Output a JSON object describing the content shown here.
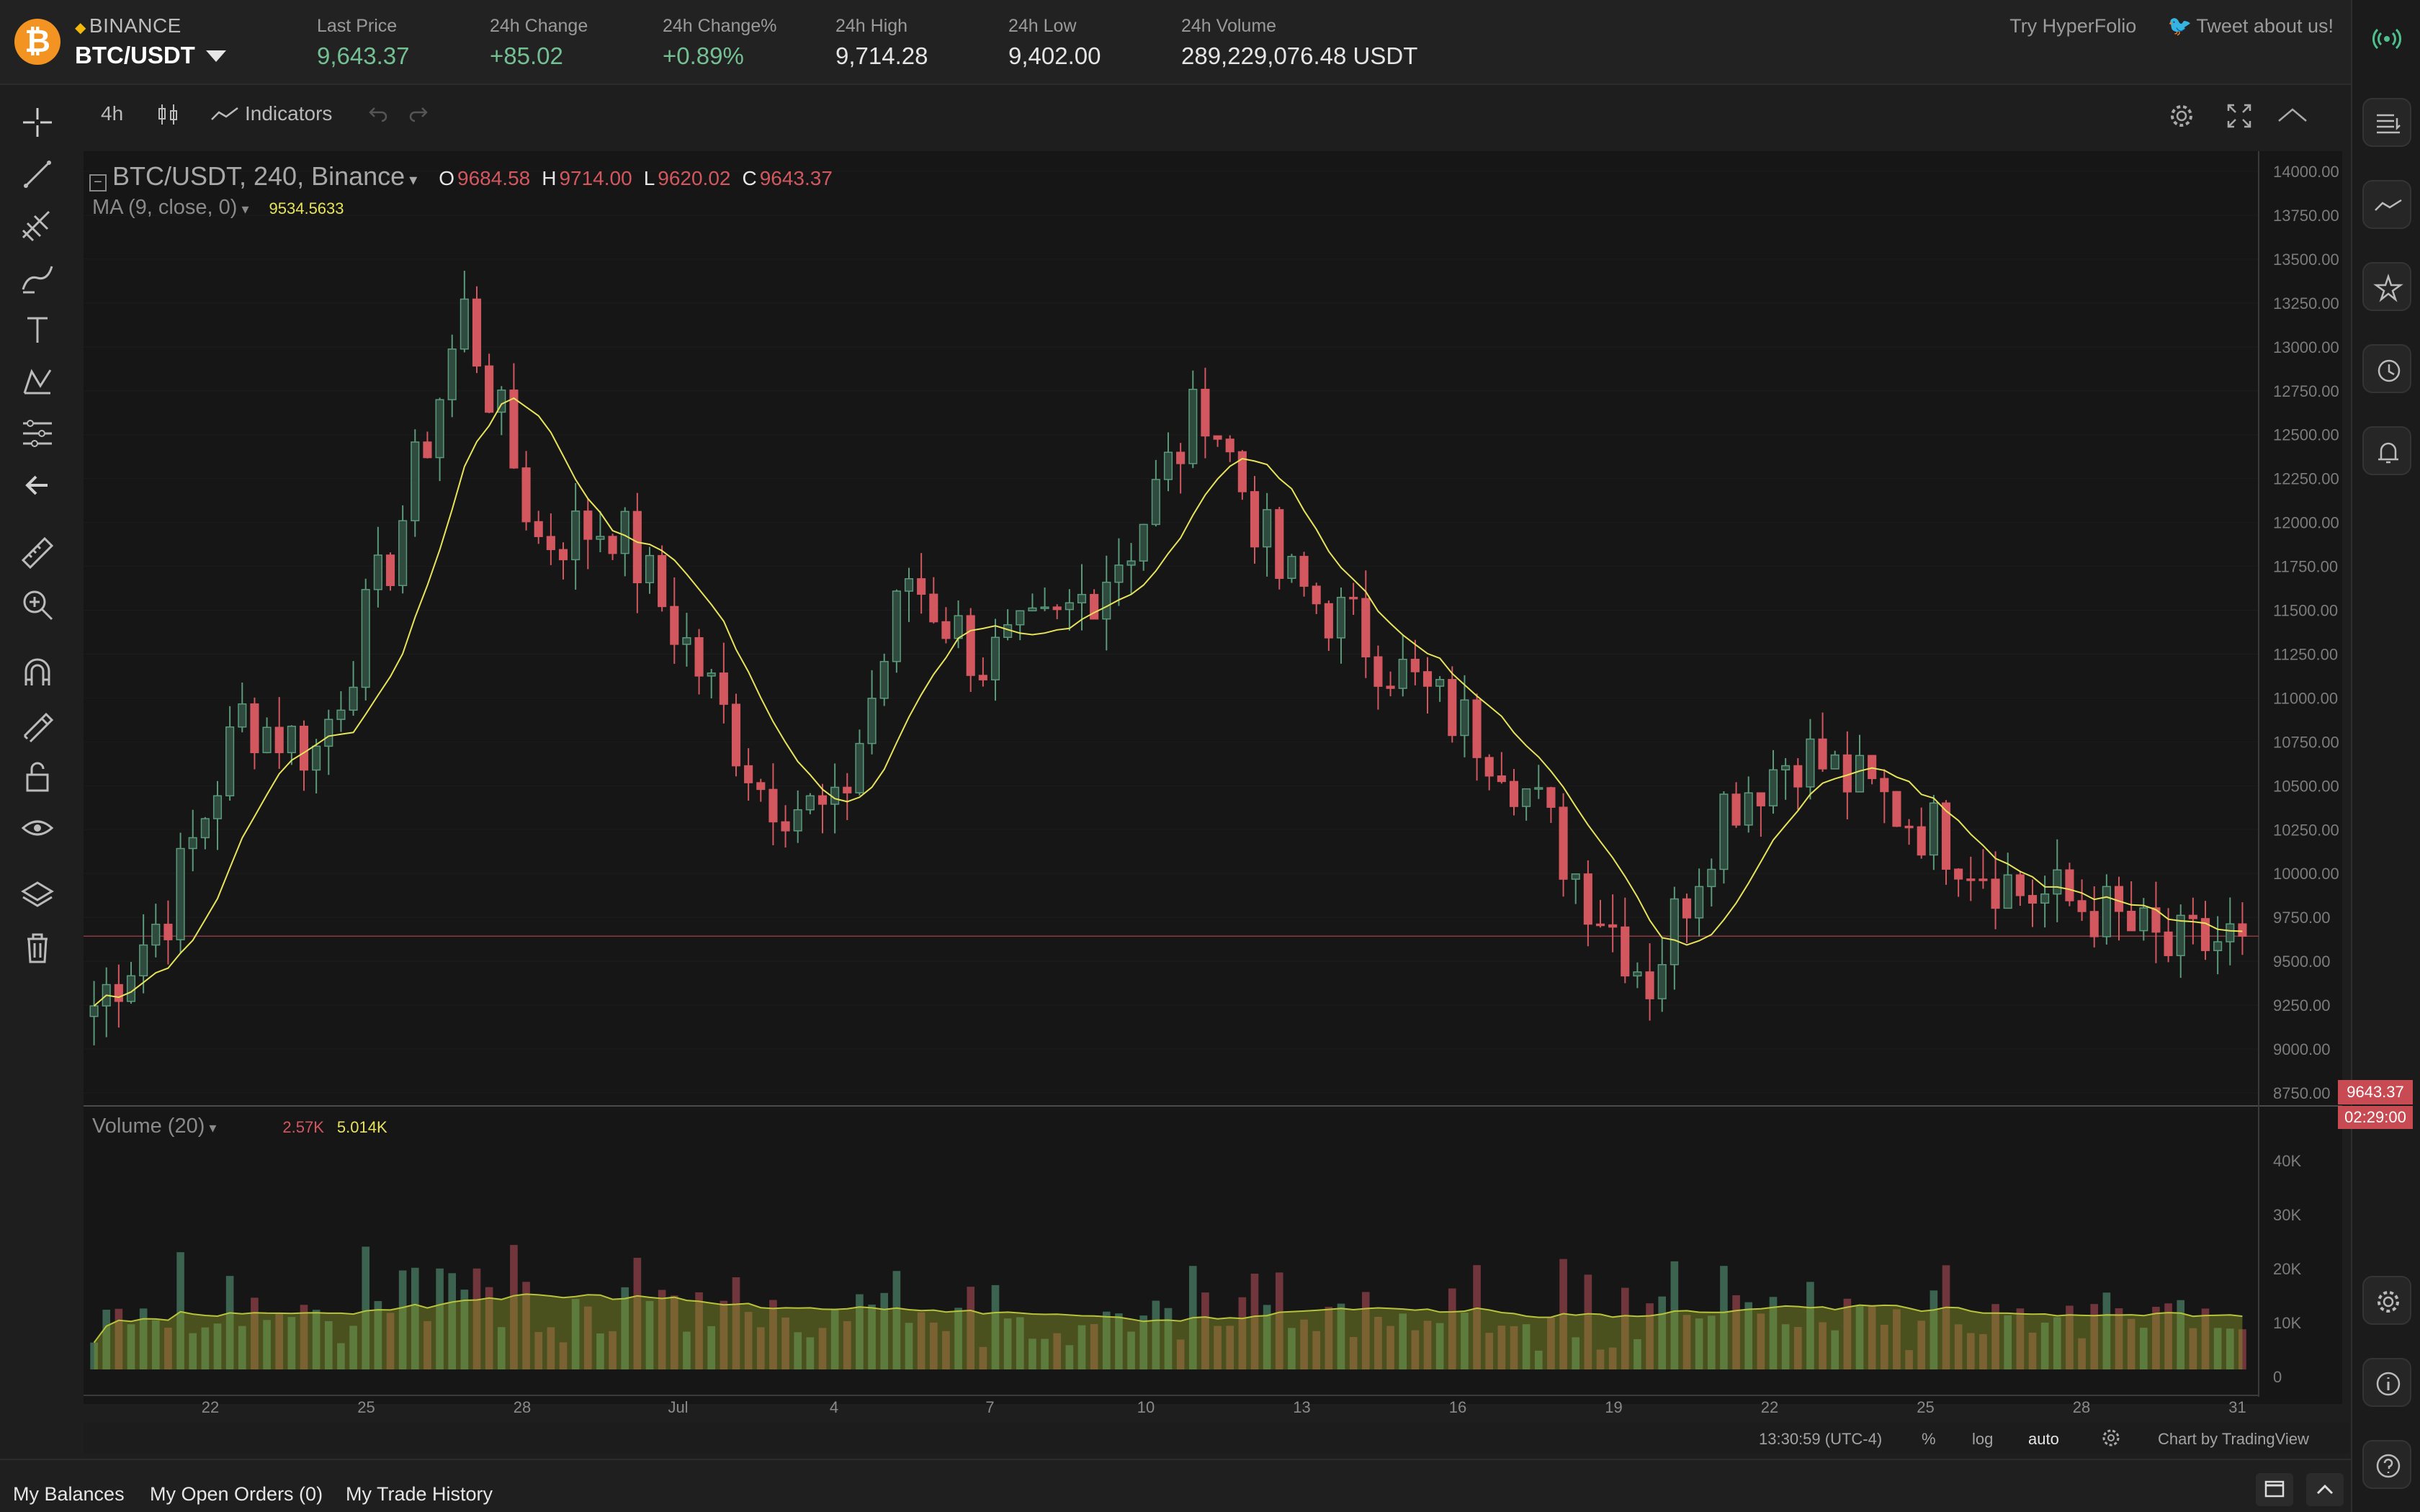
{
  "header": {
    "exchange": "BINANCE",
    "pair": "BTC/USDT",
    "logo_glyph": "₿",
    "stats": [
      {
        "label": "Last Price",
        "value": "9,643.37",
        "tone": "green"
      },
      {
        "label": "24h Change",
        "value": "+85.02",
        "tone": "green"
      },
      {
        "label": "24h Change%",
        "value": "+0.89%",
        "tone": "green"
      },
      {
        "label": "24h High",
        "value": "9,714.28",
        "tone": "white"
      },
      {
        "label": "24h Low",
        "value": "9,402.00",
        "tone": "white"
      },
      {
        "label": "24h Volume",
        "value": "289,229,076.48 USDT",
        "tone": "white"
      }
    ],
    "links": [
      "Try HyperFolio",
      "Tweet about us!"
    ]
  },
  "toolbar": {
    "interval": "4h",
    "indicators_label": "Indicators"
  },
  "legend": {
    "title": "BTC/USDT, 240, Binance",
    "open_label": "O",
    "open": "9684.58",
    "high_label": "H",
    "high": "9714.00",
    "low_label": "L",
    "low": "9620.02",
    "close_label": "C",
    "close": "9643.37",
    "ma_label": "MA (9, close, 0)",
    "ma_value": "9534.5633",
    "volume_label": "Volume (20)",
    "volume_value": "2.57K",
    "volume_ma_value": "5.014K"
  },
  "price_tag": {
    "price": "9643.37",
    "countdown": "02:29:00"
  },
  "status": {
    "time": "13:30:59 (UTC-4)",
    "percent": "%",
    "log": "log",
    "auto": "auto",
    "credit": "Chart by TradingView"
  },
  "bottom_tabs": [
    "My Balances",
    "My Open Orders (0)",
    "My Trade History"
  ],
  "colors": {
    "up": "#5a9a7a",
    "down": "#d3575f",
    "ma": "#e7e35a",
    "volume_ma_fill": "#8a9a2a",
    "accent_orange": "#f39321"
  },
  "chart_data": {
    "type": "candlestick",
    "price_axis": [
      "14000.00",
      "13750.00",
      "13500.00",
      "13250.00",
      "13000.00",
      "12750.00",
      "12500.00",
      "12250.00",
      "12000.00",
      "11750.00",
      "11500.00",
      "11250.00",
      "11000.00",
      "10750.00",
      "10500.00",
      "10250.00",
      "10000.00",
      "9750.00",
      "9500.00",
      "9250.00",
      "9000.00",
      "8750.00"
    ],
    "ylim": [
      8750,
      14000
    ],
    "volume_axis": [
      "40K",
      "30K",
      "20K",
      "10K",
      "0"
    ],
    "x_ticks": [
      "22",
      "25",
      "28",
      "Jul",
      "4",
      "7",
      "10",
      "13",
      "16",
      "19",
      "22",
      "25",
      "28",
      "31"
    ],
    "daily_closes_approx": [
      9250,
      9800,
      10900,
      10700,
      11800,
      13200,
      11900,
      12000,
      11300,
      10500,
      10300,
      11700,
      11200,
      11400,
      11900,
      12700,
      11700,
      11400,
      11000,
      10700,
      10000,
      9400,
      10400,
      10700,
      10450,
      10200,
      9900,
      9800,
      9550,
      9643.37
    ],
    "ma_period": 9,
    "volume_ma_period": 20
  }
}
